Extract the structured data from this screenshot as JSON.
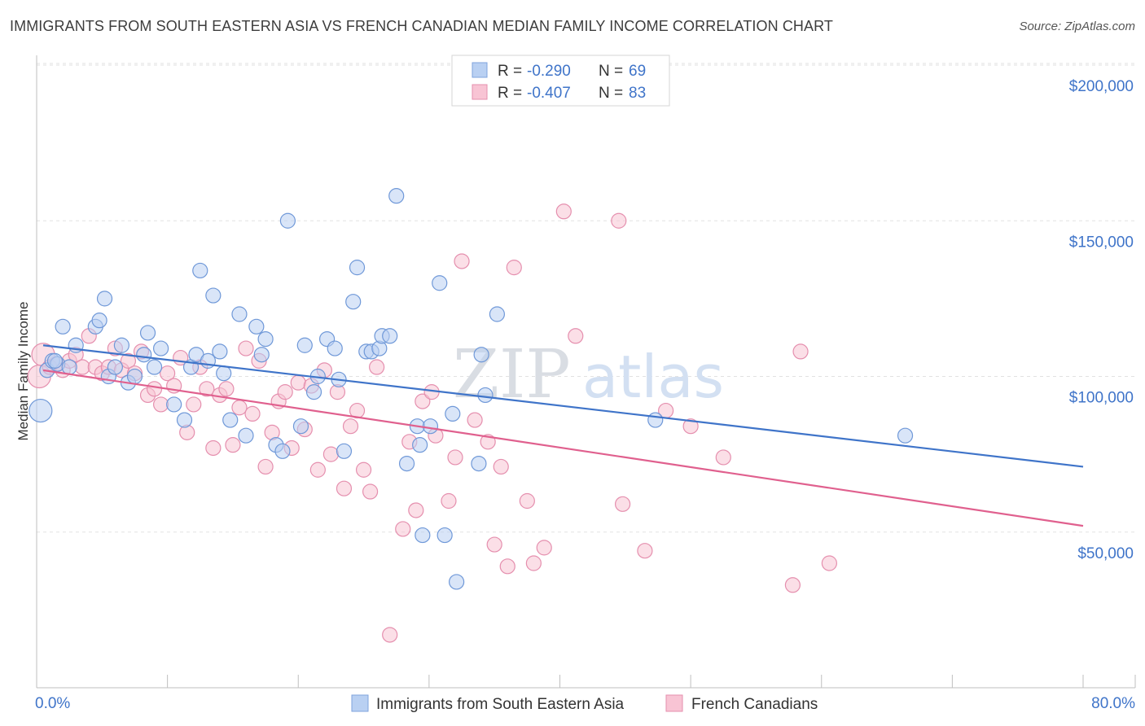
{
  "title": "IMMIGRANTS FROM SOUTH EASTERN ASIA VS FRENCH CANADIAN MEDIAN FAMILY INCOME CORRELATION CHART",
  "source": "Source: ZipAtlas.com",
  "watermark": {
    "zip": "ZIP",
    "atlas": "atlas"
  },
  "colors": {
    "blue": "#3f74c9",
    "pink": "#e0608e",
    "blue_fill": "#b9d0f2",
    "pink_fill": "#f8c4d4"
  },
  "stats": [
    {
      "r_label": "R =",
      "r_value": "-0.290",
      "n_label": "N =",
      "n_value": "69"
    },
    {
      "r_label": "R =",
      "r_value": "-0.407",
      "n_label": "N =",
      "n_value": "83"
    }
  ],
  "chart_data": {
    "type": "scatter",
    "ylabel": "Median Family Income",
    "x_range": [
      0,
      80
    ],
    "x_tick_labels": [
      "0.0%",
      "80.0%"
    ],
    "ylim": [
      0,
      200000
    ],
    "y_tick_labels": [
      "$50,000",
      "$100,000",
      "$150,000",
      "$200,000"
    ],
    "y_ticks": [
      50000,
      100000,
      150000,
      200000
    ],
    "grid": true,
    "legend_position": "bottom-center",
    "series": [
      {
        "name": "Immigrants from South Eastern Asia",
        "trend": [
          [
            0.5,
            110000
          ],
          [
            80,
            71000
          ]
        ],
        "points": [
          [
            0.3,
            89000
          ],
          [
            0.8,
            102000
          ],
          [
            1.2,
            105000
          ],
          [
            1.6,
            104000
          ],
          [
            2.0,
            116000
          ],
          [
            2.5,
            103000
          ],
          [
            3.0,
            110000
          ],
          [
            4.5,
            116000
          ],
          [
            4.8,
            118000
          ],
          [
            5.2,
            125000
          ],
          [
            5.5,
            100000
          ],
          [
            6.0,
            103000
          ],
          [
            6.5,
            110000
          ],
          [
            7.0,
            98000
          ],
          [
            7.5,
            100000
          ],
          [
            8.2,
            107000
          ],
          [
            8.5,
            114000
          ],
          [
            9.0,
            103000
          ],
          [
            9.5,
            109000
          ],
          [
            10.5,
            91000
          ],
          [
            11.3,
            86000
          ],
          [
            11.8,
            103000
          ],
          [
            12.2,
            107000
          ],
          [
            12.5,
            134000
          ],
          [
            13.1,
            105000
          ],
          [
            13.5,
            126000
          ],
          [
            14.0,
            108000
          ],
          [
            14.3,
            101000
          ],
          [
            14.8,
            86000
          ],
          [
            15.5,
            120000
          ],
          [
            16.0,
            81000
          ],
          [
            16.8,
            116000
          ],
          [
            17.2,
            107000
          ],
          [
            17.5,
            112000
          ],
          [
            18.3,
            78000
          ],
          [
            18.8,
            76000
          ],
          [
            19.2,
            150000
          ],
          [
            20.2,
            84000
          ],
          [
            20.5,
            110000
          ],
          [
            21.2,
            95000
          ],
          [
            21.5,
            100000
          ],
          [
            22.2,
            112000
          ],
          [
            22.8,
            109000
          ],
          [
            23.1,
            99000
          ],
          [
            23.5,
            76000
          ],
          [
            24.2,
            124000
          ],
          [
            24.5,
            135000
          ],
          [
            25.2,
            108000
          ],
          [
            25.6,
            108000
          ],
          [
            26.2,
            109000
          ],
          [
            26.4,
            113000
          ],
          [
            27.0,
            113000
          ],
          [
            27.5,
            158000
          ],
          [
            28.3,
            72000
          ],
          [
            29.1,
            84000
          ],
          [
            29.3,
            78000
          ],
          [
            29.5,
            49000
          ],
          [
            30.1,
            84000
          ],
          [
            30.8,
            130000
          ],
          [
            31.2,
            49000
          ],
          [
            31.8,
            88000
          ],
          [
            32.1,
            34000
          ],
          [
            33.8,
            72000
          ],
          [
            34.0,
            107000
          ],
          [
            34.3,
            94000
          ],
          [
            35.2,
            120000
          ],
          [
            47.3,
            86000
          ],
          [
            66.4,
            81000
          ],
          [
            1.4,
            105000
          ]
        ]
      },
      {
        "name": "French Canadians",
        "trend": [
          [
            0.5,
            102000
          ],
          [
            80,
            52000
          ]
        ],
        "points": [
          [
            0.2,
            100000
          ],
          [
            0.5,
            107000
          ],
          [
            1.0,
            103000
          ],
          [
            1.5,
            104000
          ],
          [
            2.0,
            102000
          ],
          [
            2.5,
            105000
          ],
          [
            3.0,
            107000
          ],
          [
            3.5,
            103000
          ],
          [
            4.0,
            113000
          ],
          [
            4.5,
            103000
          ],
          [
            5.0,
            101000
          ],
          [
            5.5,
            103000
          ],
          [
            6.0,
            109000
          ],
          [
            6.5,
            102000
          ],
          [
            7.0,
            105000
          ],
          [
            7.5,
            101000
          ],
          [
            8.0,
            108000
          ],
          [
            8.5,
            94000
          ],
          [
            9.0,
            96000
          ],
          [
            9.5,
            91000
          ],
          [
            10.0,
            101000
          ],
          [
            10.5,
            97000
          ],
          [
            11.0,
            106000
          ],
          [
            11.5,
            82000
          ],
          [
            12.0,
            91000
          ],
          [
            12.5,
            103000
          ],
          [
            13.0,
            96000
          ],
          [
            13.5,
            77000
          ],
          [
            14.0,
            94000
          ],
          [
            14.5,
            96000
          ],
          [
            15.0,
            78000
          ],
          [
            15.5,
            90000
          ],
          [
            16.0,
            109000
          ],
          [
            16.5,
            88000
          ],
          [
            17.0,
            105000
          ],
          [
            17.5,
            71000
          ],
          [
            18.0,
            82000
          ],
          [
            18.5,
            92000
          ],
          [
            19.0,
            95000
          ],
          [
            19.5,
            77000
          ],
          [
            20.0,
            98000
          ],
          [
            20.5,
            83000
          ],
          [
            21.0,
            97000
          ],
          [
            21.5,
            70000
          ],
          [
            22.0,
            102000
          ],
          [
            22.5,
            75000
          ],
          [
            23.0,
            95000
          ],
          [
            23.5,
            64000
          ],
          [
            24.0,
            84000
          ],
          [
            24.5,
            89000
          ],
          [
            25.0,
            70000
          ],
          [
            25.5,
            63000
          ],
          [
            26.0,
            103000
          ],
          [
            27.0,
            17000
          ],
          [
            28.0,
            51000
          ],
          [
            28.5,
            79000
          ],
          [
            29.0,
            57000
          ],
          [
            29.5,
            92000
          ],
          [
            30.2,
            95000
          ],
          [
            30.5,
            81000
          ],
          [
            31.5,
            60000
          ],
          [
            32.0,
            74000
          ],
          [
            32.5,
            137000
          ],
          [
            33.5,
            86000
          ],
          [
            34.5,
            79000
          ],
          [
            35.0,
            46000
          ],
          [
            35.5,
            71000
          ],
          [
            36.0,
            39000
          ],
          [
            36.5,
            135000
          ],
          [
            37.5,
            60000
          ],
          [
            38.0,
            40000
          ],
          [
            38.8,
            45000
          ],
          [
            40.3,
            153000
          ],
          [
            41.2,
            113000
          ],
          [
            44.5,
            150000
          ],
          [
            44.8,
            59000
          ],
          [
            46.5,
            44000
          ],
          [
            48.1,
            89000
          ],
          [
            50.0,
            84000
          ],
          [
            52.5,
            74000
          ],
          [
            57.8,
            33000
          ],
          [
            58.4,
            108000
          ],
          [
            60.6,
            40000
          ]
        ]
      }
    ]
  },
  "legend": {
    "items": [
      "Immigrants from South Eastern Asia",
      "French Canadians"
    ]
  }
}
